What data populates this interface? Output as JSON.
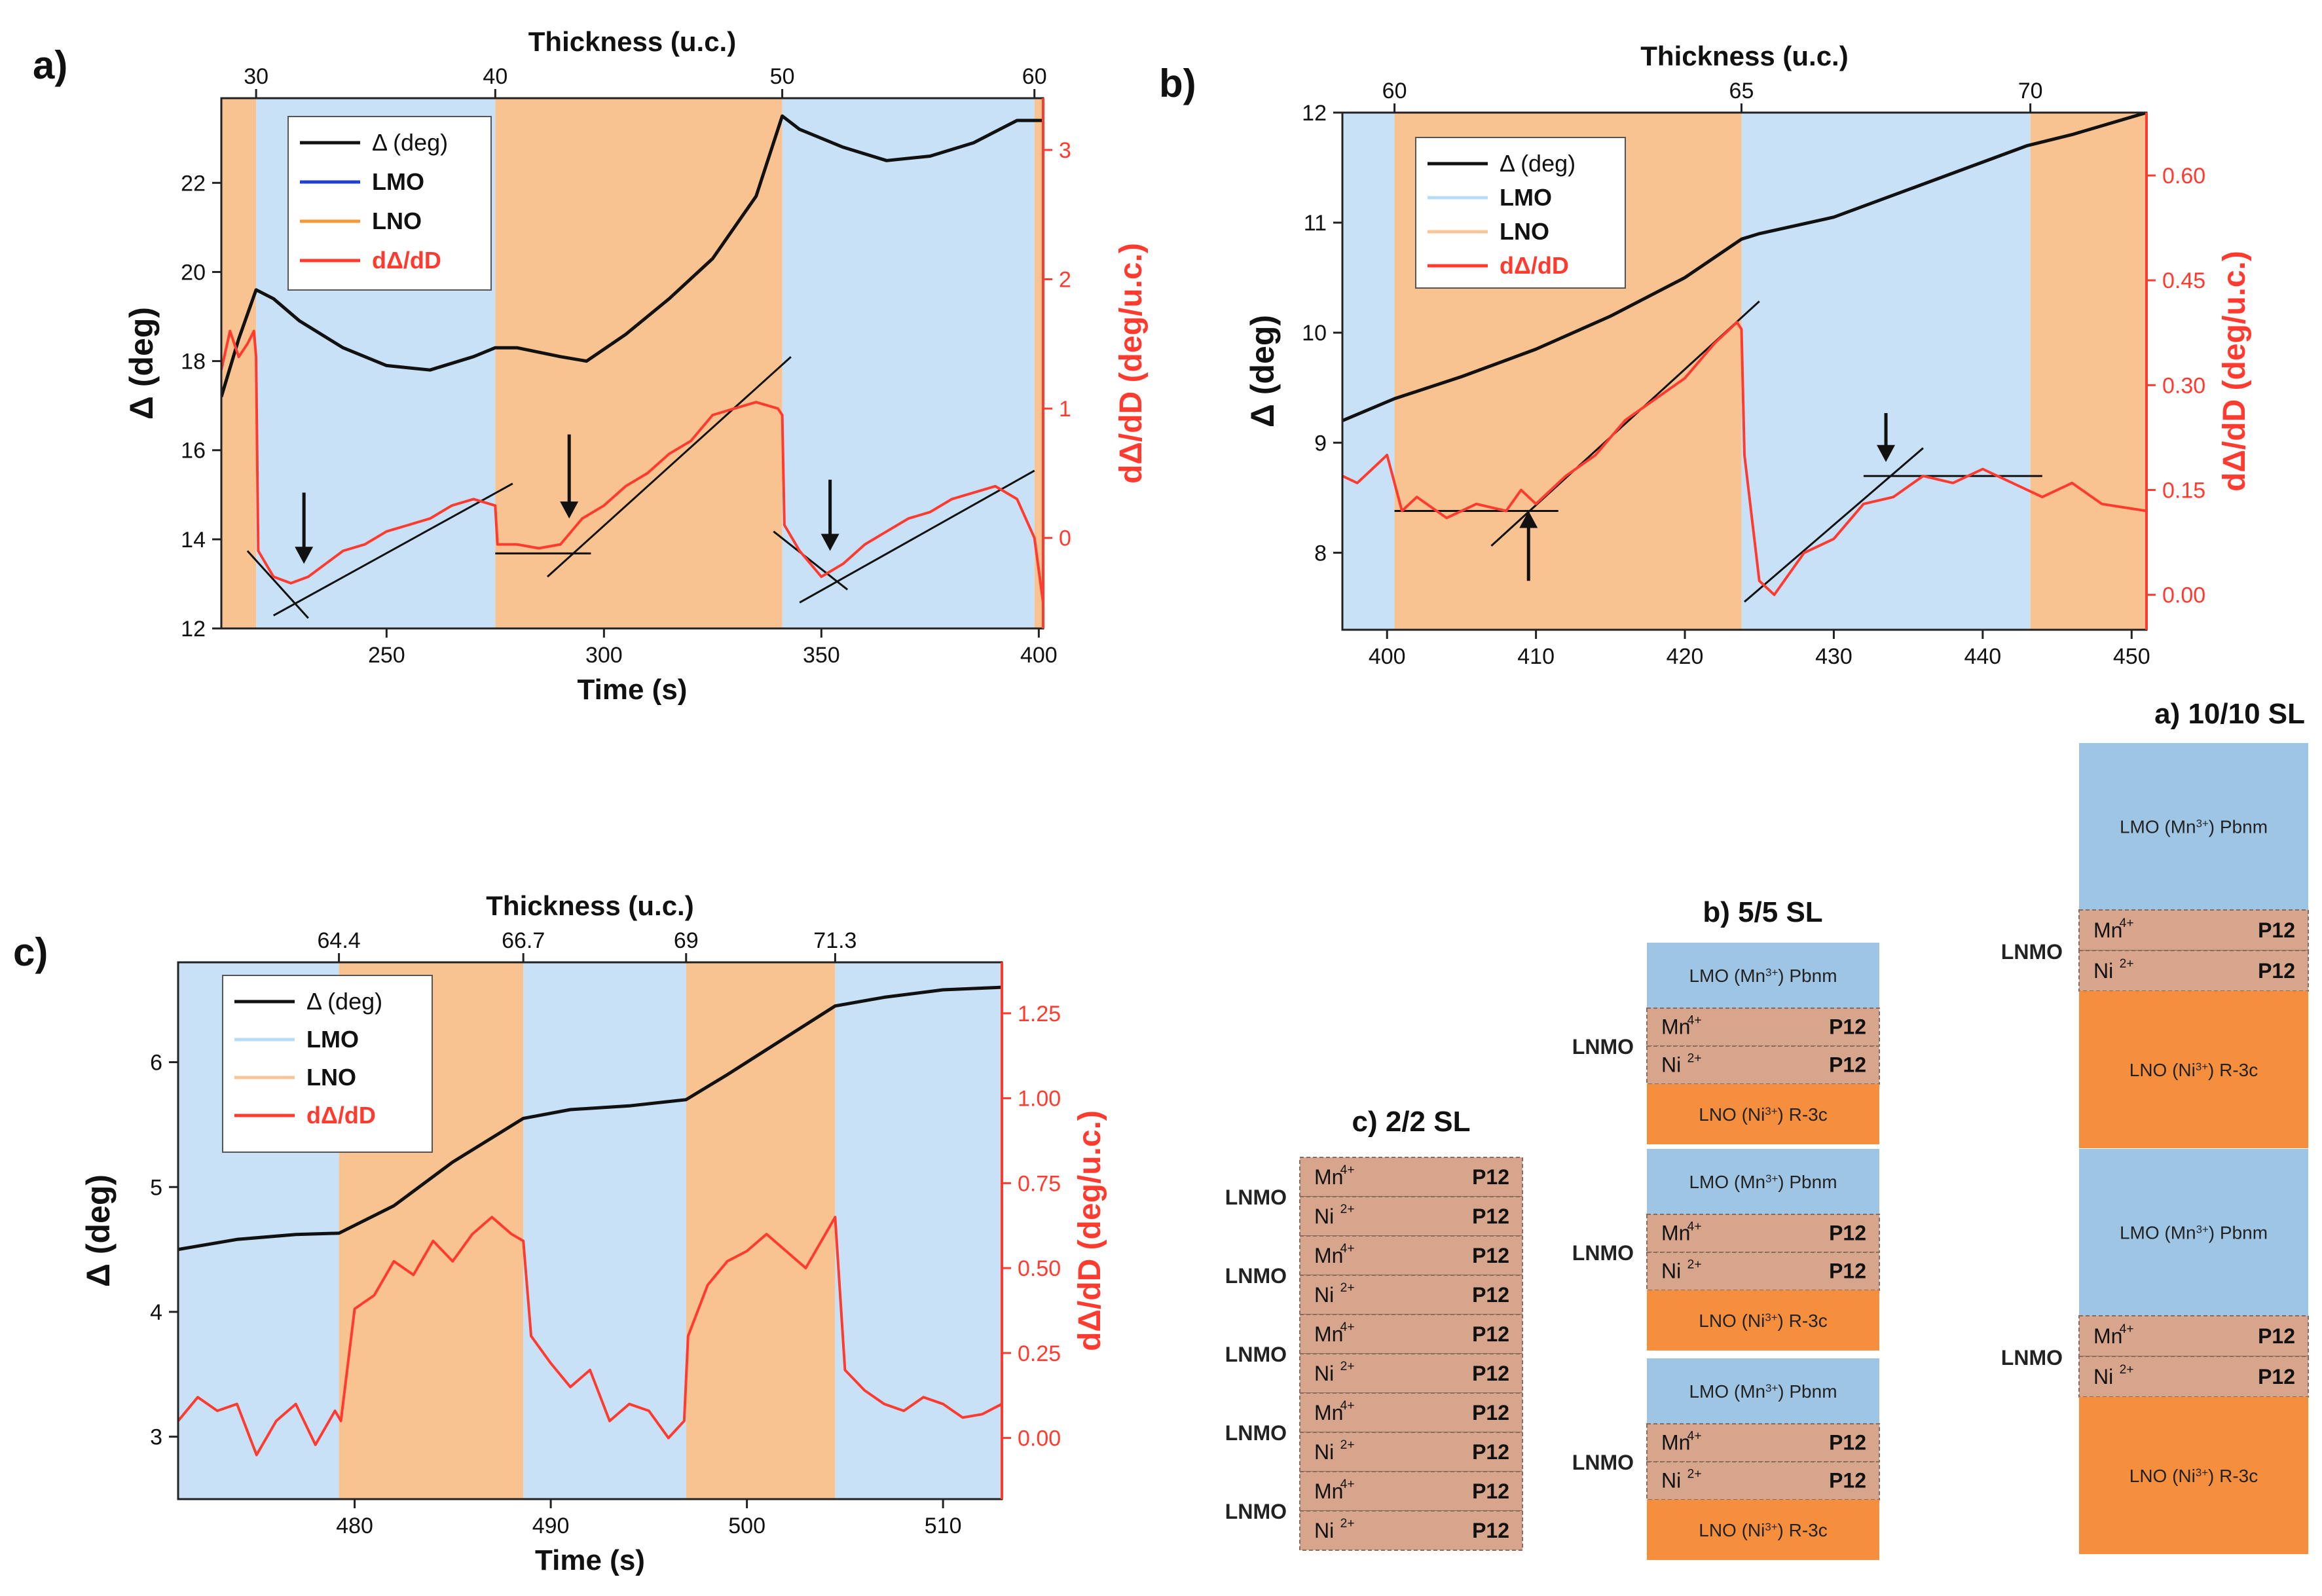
{
  "colors": {
    "lmo": "#c8e1f7",
    "lno": "#f9c391",
    "lmo_stack": "#9ec5e4",
    "lno_stack": "#f58f3e",
    "lnmo_stack": "#d6a58c",
    "delta": "#111111",
    "deriv": "#ff3b30",
    "fit": "#111111"
  },
  "chart_data": [
    {
      "id": "a",
      "type": "line",
      "panel_label": "a)",
      "xlabel": "Time (s)",
      "ylabel": "Δ (deg)",
      "y2label": "dΔ/dD (deg/u.c.)",
      "top_axis_label": "Thickness (u.c.)",
      "xlim": [
        212,
        401
      ],
      "ylim": [
        12,
        23.9
      ],
      "y2lim": [
        -0.7,
        3.4
      ],
      "x_ticks": [
        250,
        300,
        350,
        400
      ],
      "x_tick_labels": [
        "250",
        "300",
        "350",
        "400"
      ],
      "y_ticks": [
        12,
        14,
        16,
        18,
        20,
        22
      ],
      "y_tick_labels": [
        "12",
        "14",
        "16",
        "18",
        "20",
        "22"
      ],
      "y2_ticks": [
        0,
        1,
        2,
        3
      ],
      "y2_tick_labels": [
        "0",
        "1",
        "2",
        "3"
      ],
      "top_ticks": [
        220,
        275,
        341,
        399
      ],
      "top_tick_labels": [
        "30",
        "40",
        "50",
        "60"
      ],
      "regions": [
        {
          "x": [
            212,
            220
          ],
          "layer": "LNO"
        },
        {
          "x": [
            220,
            275
          ],
          "layer": "LMO"
        },
        {
          "x": [
            275,
            341
          ],
          "layer": "LNO"
        },
        {
          "x": [
            341,
            399
          ],
          "layer": "LMO"
        },
        {
          "x": [
            399,
            401
          ],
          "layer": "LNO"
        }
      ],
      "legend": [
        {
          "label": "Δ (deg)",
          "color": "#111111"
        },
        {
          "label": "LMO",
          "color": "#1f3fd1"
        },
        {
          "label": "LNO",
          "color": "#f39a3c"
        },
        {
          "label": "dΔ/dD",
          "color": "#ff3b30"
        }
      ],
      "series": [
        {
          "name": "Δ (deg)",
          "axis": "left",
          "x": [
            212,
            216,
            220,
            224,
            230,
            240,
            250,
            260,
            270,
            275,
            280,
            290,
            296,
            305,
            315,
            325,
            335,
            341,
            345,
            355,
            365,
            375,
            385,
            395,
            401
          ],
          "y": [
            17.2,
            18.5,
            19.6,
            19.4,
            18.9,
            18.3,
            17.9,
            17.8,
            18.1,
            18.3,
            18.3,
            18.1,
            18.0,
            18.6,
            19.4,
            20.3,
            21.7,
            23.5,
            23.2,
            22.8,
            22.5,
            22.6,
            22.9,
            23.4,
            23.4
          ]
        },
        {
          "name": "dΔ/dD",
          "axis": "right",
          "x": [
            212,
            214,
            216,
            218,
            219.5,
            220,
            220.5,
            224,
            228,
            232,
            236,
            240,
            245,
            250,
            255,
            260,
            265,
            270,
            275,
            275.5,
            280,
            285,
            290,
            295,
            300,
            305,
            310,
            315,
            320,
            325,
            330,
            335,
            340,
            341,
            341.5,
            345,
            350,
            355,
            360,
            365,
            370,
            375,
            380,
            385,
            390,
            395,
            399,
            401
          ],
          "y": [
            1.3,
            1.6,
            1.4,
            1.5,
            1.6,
            1.4,
            -0.1,
            -0.3,
            -0.35,
            -0.3,
            -0.2,
            -0.1,
            -0.05,
            0.05,
            0.1,
            0.15,
            0.25,
            0.3,
            0.25,
            -0.05,
            -0.05,
            -0.08,
            -0.05,
            0.15,
            0.25,
            0.4,
            0.5,
            0.65,
            0.75,
            0.95,
            1.0,
            1.05,
            1.0,
            0.95,
            0.1,
            -0.1,
            -0.3,
            -0.2,
            -0.05,
            0.05,
            0.15,
            0.2,
            0.3,
            0.35,
            0.4,
            0.3,
            0.0,
            -0.5
          ]
        }
      ],
      "fit_lines": [
        {
          "x": [
            218,
            232
          ],
          "y": [
            -0.1,
            -0.62
          ]
        },
        {
          "x": [
            224,
            279
          ],
          "y": [
            -0.6,
            0.42
          ]
        },
        {
          "x": [
            275,
            297
          ],
          "y": [
            -0.12,
            -0.12
          ]
        },
        {
          "x": [
            287,
            343
          ],
          "y": [
            -0.3,
            1.4
          ]
        },
        {
          "x": [
            339,
            356
          ],
          "y": [
            0.05,
            -0.4
          ]
        },
        {
          "x": [
            345,
            399
          ],
          "y": [
            -0.5,
            0.52
          ]
        }
      ],
      "arrows": [
        {
          "x": 231,
          "y_from": 0.35,
          "y_to": -0.2,
          "dir": "down"
        },
        {
          "x": 292,
          "y_from": 0.8,
          "y_to": 0.15,
          "dir": "down"
        },
        {
          "x": 352,
          "y_from": 0.45,
          "y_to": -0.1,
          "dir": "down"
        }
      ]
    },
    {
      "id": "b",
      "type": "line",
      "panel_label": "b)",
      "xlabel": "",
      "ylabel": "Δ (deg)",
      "y2label": "dΔ/dD (deg/u.c.)",
      "top_axis_label": "Thickness (u.c.)",
      "xlim": [
        397,
        451
      ],
      "ylim": [
        7.3,
        12
      ],
      "y2lim": [
        -0.05,
        0.69
      ],
      "x_ticks": [
        400,
        410,
        420,
        430,
        440,
        450
      ],
      "x_tick_labels": [
        "400",
        "410",
        "420",
        "430",
        "440",
        "450"
      ],
      "y_ticks": [
        8,
        9,
        10,
        11,
        12
      ],
      "y_tick_labels": [
        "8",
        "9",
        "10",
        "11",
        "12"
      ],
      "y2_ticks": [
        0.0,
        0.15,
        0.3,
        0.45,
        0.6
      ],
      "y2_tick_labels": [
        "0.00",
        "0.15",
        "0.30",
        "0.45",
        "0.60"
      ],
      "top_ticks": [
        400.5,
        423.8,
        443.2
      ],
      "top_tick_labels": [
        "60",
        "65",
        "70"
      ],
      "regions": [
        {
          "x": [
            397,
            400.5
          ],
          "layer": "LMO"
        },
        {
          "x": [
            400.5,
            423.8
          ],
          "layer": "LNO"
        },
        {
          "x": [
            423.8,
            443.2
          ],
          "layer": "LMO"
        },
        {
          "x": [
            443.2,
            451
          ],
          "layer": "LNO"
        }
      ],
      "legend": [
        {
          "label": "Δ (deg)",
          "color": "#111111"
        },
        {
          "label": "LMO",
          "color": "#b8dcf6"
        },
        {
          "label": "LNO",
          "color": "#f7c596"
        },
        {
          "label": "dΔ/dD",
          "color": "#ff3b30"
        }
      ],
      "series": [
        {
          "name": "Δ (deg)",
          "axis": "left",
          "x": [
            397,
            400.5,
            405,
            410,
            415,
            420,
            423.8,
            425,
            430,
            435,
            440,
            443,
            446,
            451
          ],
          "y": [
            9.2,
            9.4,
            9.6,
            9.85,
            10.15,
            10.5,
            10.85,
            10.9,
            11.05,
            11.3,
            11.55,
            11.7,
            11.8,
            12.0
          ]
        },
        {
          "name": "dΔ/dD",
          "axis": "right",
          "x": [
            397,
            398,
            399,
            400,
            401,
            402,
            404,
            406,
            408,
            409,
            410,
            412,
            414,
            416,
            418,
            420,
            422,
            423.5,
            423.8,
            424,
            425,
            426,
            428,
            430,
            432,
            434,
            436,
            438,
            440,
            442,
            444,
            446,
            448,
            451
          ],
          "y": [
            0.17,
            0.16,
            0.18,
            0.2,
            0.12,
            0.14,
            0.11,
            0.13,
            0.12,
            0.15,
            0.13,
            0.17,
            0.2,
            0.25,
            0.28,
            0.31,
            0.36,
            0.39,
            0.38,
            0.2,
            0.02,
            0.0,
            0.06,
            0.08,
            0.13,
            0.14,
            0.17,
            0.16,
            0.18,
            0.16,
            0.14,
            0.16,
            0.13,
            0.12
          ]
        }
      ],
      "fit_lines": [
        {
          "x": [
            400.5,
            411.5
          ],
          "y": [
            0.12,
            0.12
          ]
        },
        {
          "x": [
            407,
            425
          ],
          "y": [
            0.07,
            0.42
          ]
        },
        {
          "x": [
            424,
            436
          ],
          "y": [
            -0.01,
            0.21
          ]
        },
        {
          "x": [
            432,
            444
          ],
          "y": [
            0.17,
            0.17
          ]
        }
      ],
      "arrows": [
        {
          "x": 409.5,
          "y_from": 0.02,
          "y_to": 0.12,
          "dir": "up"
        },
        {
          "x": 433.5,
          "y_from": 0.26,
          "y_to": 0.19,
          "dir": "down"
        }
      ]
    },
    {
      "id": "c",
      "type": "line",
      "panel_label": "c)",
      "xlabel": "Time (s)",
      "ylabel": "Δ (deg)",
      "y2label": "dΔ/dD (deg/u.c.)",
      "top_axis_label": "Thickness (u.c.)",
      "xlim": [
        471,
        513
      ],
      "ylim": [
        2.5,
        6.8
      ],
      "y2lim": [
        -0.18,
        1.4
      ],
      "x_ticks": [
        480,
        490,
        500,
        510
      ],
      "x_tick_labels": [
        "480",
        "490",
        "500",
        "510"
      ],
      "y_ticks": [
        3,
        4,
        5,
        6
      ],
      "y_tick_labels": [
        "3",
        "4",
        "5",
        "6"
      ],
      "y2_ticks": [
        0.0,
        0.25,
        0.5,
        0.75,
        1.0,
        1.25
      ],
      "y2_tick_labels": [
        "0.00",
        "0.25",
        "0.50",
        "0.75",
        "1.00",
        "1.25"
      ],
      "top_ticks": [
        479.2,
        488.6,
        496.9,
        504.5
      ],
      "top_tick_labels": [
        "64.4",
        "66.7",
        "69",
        "71.3"
      ],
      "regions": [
        {
          "x": [
            471,
            479.2
          ],
          "layer": "LMO"
        },
        {
          "x": [
            479.2,
            488.6
          ],
          "layer": "LNO"
        },
        {
          "x": [
            488.6,
            496.9
          ],
          "layer": "LMO"
        },
        {
          "x": [
            496.9,
            504.5
          ],
          "layer": "LNO"
        },
        {
          "x": [
            504.5,
            513
          ],
          "layer": "LMO"
        }
      ],
      "legend": [
        {
          "label": "Δ (deg)",
          "color": "#111111"
        },
        {
          "label": "LMO",
          "color": "#b8dcf6"
        },
        {
          "label": "LNO",
          "color": "#f7c596"
        },
        {
          "label": "dΔ/dD",
          "color": "#ff3b30"
        }
      ],
      "series": [
        {
          "name": "Δ (deg)",
          "axis": "left",
          "x": [
            471,
            474,
            477,
            479.2,
            482,
            485,
            488.6,
            491,
            494,
            496.9,
            499,
            502,
            504.5,
            507,
            510,
            513
          ],
          "y": [
            4.5,
            4.58,
            4.62,
            4.63,
            4.85,
            5.2,
            5.55,
            5.62,
            5.65,
            5.7,
            5.9,
            6.2,
            6.45,
            6.52,
            6.58,
            6.6
          ]
        },
        {
          "name": "dΔ/dD",
          "axis": "right",
          "x": [
            471,
            472,
            473,
            474,
            475,
            476,
            477,
            478,
            479,
            479.3,
            480,
            481,
            482,
            483,
            484,
            485,
            486,
            487,
            488,
            488.6,
            489,
            490,
            491,
            492,
            493,
            494,
            495,
            496,
            496.8,
            497,
            498,
            499,
            500,
            501,
            502,
            503,
            504,
            504.5,
            505,
            506,
            507,
            508,
            509,
            510,
            511,
            512,
            513
          ],
          "y": [
            0.05,
            0.12,
            0.08,
            0.1,
            -0.05,
            0.05,
            0.1,
            -0.02,
            0.08,
            0.05,
            0.38,
            0.42,
            0.52,
            0.48,
            0.58,
            0.52,
            0.6,
            0.65,
            0.6,
            0.58,
            0.3,
            0.22,
            0.15,
            0.2,
            0.05,
            0.1,
            0.08,
            0.0,
            0.05,
            0.3,
            0.45,
            0.52,
            0.55,
            0.6,
            0.55,
            0.5,
            0.6,
            0.65,
            0.2,
            0.14,
            0.1,
            0.08,
            0.12,
            0.1,
            0.06,
            0.07,
            0.1
          ]
        }
      ]
    }
  ],
  "stacks": {
    "lnmo_label": "LNMO",
    "c": {
      "title": "c) 2/2 SL",
      "cells": [
        {
          "ion": "Mn",
          "sup": "4+",
          "group": "P12"
        },
        {
          "ion": "Ni",
          "sup": "2+",
          "group": "P12"
        }
      ]
    },
    "b": {
      "title": "b) 5/5 SL",
      "lmo_text": "LMO (Mn",
      "lmo_sup": "3+",
      "lmo_rest": ") Pbnm",
      "lno_text": "LNO (Ni",
      "lno_sup": "3+",
      "lno_rest": ") R-3c",
      "mn_label": "Mn",
      "mn_sup": "4+",
      "ni_label": "Ni",
      "ni_sup": "2+",
      "group": "P12"
    },
    "a": {
      "title": "a) 10/10 SL"
    }
  }
}
